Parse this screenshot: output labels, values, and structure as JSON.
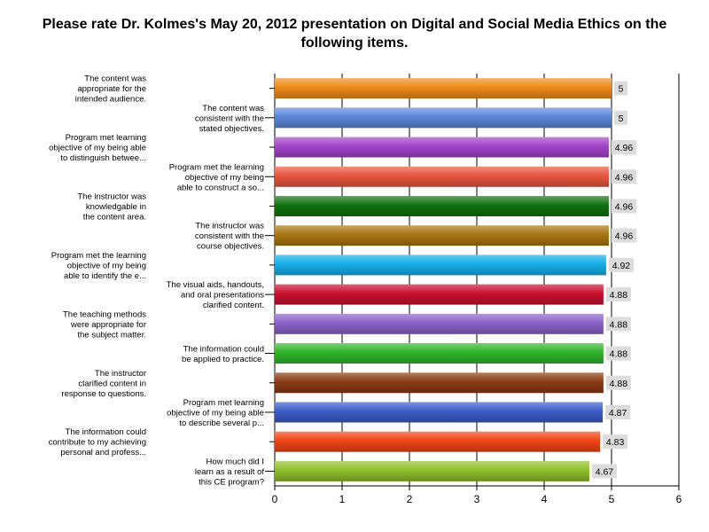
{
  "chart_data": {
    "type": "bar",
    "orientation": "horizontal",
    "title": "Please rate Dr. Kolmes's May 20, 2012 presentation on Digital and Social Media Ethics on the following items.",
    "xlabel": "",
    "ylabel": "",
    "xlim": [
      0,
      6
    ],
    "x_ticks": [
      "0",
      "1",
      "2",
      "3",
      "4",
      "5",
      "6"
    ],
    "grid": true,
    "legend": "none",
    "categories": [
      [
        "The content was",
        "appropriate for the",
        "intended audience."
      ],
      [
        "The content was",
        "consistent with the",
        "stated objectives."
      ],
      [
        "Program met learning",
        "objective of my being able",
        "to distinguish betwee..."
      ],
      [
        "Program met the learning",
        "objective of my being",
        "able to construct a so..."
      ],
      [
        "The instructor was",
        "knowledgable in",
        "the content area."
      ],
      [
        "The instructor was",
        "consistent with the",
        "course objectives."
      ],
      [
        "Program met the learning",
        "objective of my being",
        "able to identify the e..."
      ],
      [
        "The visual aids, handouts,",
        "and oral presentations",
        "clarified content."
      ],
      [
        "The teaching methods",
        "were appropriate for",
        "the subject matter."
      ],
      [
        "The information could",
        "be applied to practice."
      ],
      [
        "The instructor",
        "clarified content in",
        "response to questions."
      ],
      [
        "Program met learning",
        "objective of my being able",
        "to describe several p..."
      ],
      [
        "The information could",
        "contribute to my achieving",
        "personal and profess..."
      ],
      [
        "How much did I",
        "learn as a result of",
        "this CE program?"
      ]
    ],
    "values": [
      5,
      5,
      4.96,
      4.96,
      4.96,
      4.96,
      4.92,
      4.88,
      4.88,
      4.88,
      4.88,
      4.87,
      4.83,
      4.67
    ],
    "data_labels": [
      "5",
      "5",
      "4.96",
      "4.96",
      "4.96",
      "4.96",
      "4.92",
      "4.88",
      "4.88",
      "4.88",
      "4.88",
      "4.87",
      "4.83",
      "4.67"
    ],
    "bar_colors": [
      "#f08a1a",
      "#5b87d9",
      "#a044c8",
      "#e8553d",
      "#10720f",
      "#a87510",
      "#14aee8",
      "#c8102e",
      "#8a62c8",
      "#2fb52a",
      "#8a3a14",
      "#3a5cc8",
      "#f04514",
      "#8fbf2a"
    ]
  }
}
